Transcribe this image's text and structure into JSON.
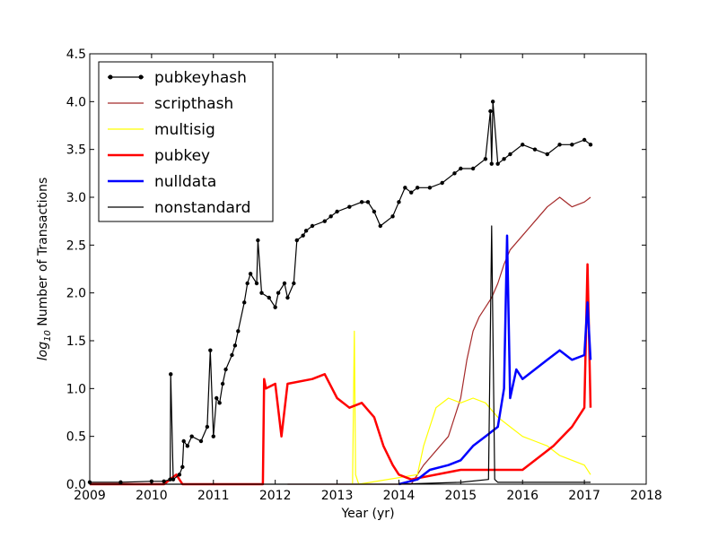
{
  "chart_data": {
    "type": "line",
    "title": "",
    "xlabel": "Year (yr)",
    "ylabel_prefix": "log",
    "ylabel_sub": "10",
    "ylabel_rest": " Number of Transactions",
    "xlim": [
      2009,
      2018
    ],
    "ylim": [
      0,
      4.5
    ],
    "xticks": [
      "2009",
      "2010",
      "2011",
      "2012",
      "2013",
      "2014",
      "2015",
      "2016",
      "2017",
      "2018"
    ],
    "yticks": [
      "0.0",
      "0.5",
      "1.0",
      "1.5",
      "2.0",
      "2.5",
      "3.0",
      "3.5",
      "4.0",
      "4.5"
    ],
    "grid": false,
    "legend_position": "top-left",
    "series": [
      {
        "name": "pubkeyhash",
        "color": "#000000",
        "style": "line-with-dots",
        "x": [
          2009.0,
          2009.5,
          2010.0,
          2010.2,
          2010.3,
          2010.31,
          2010.35,
          2010.45,
          2010.5,
          2010.52,
          2010.58,
          2010.65,
          2010.8,
          2010.9,
          2010.95,
          2011.0,
          2011.05,
          2011.1,
          2011.15,
          2011.2,
          2011.3,
          2011.35,
          2011.4,
          2011.5,
          2011.55,
          2011.6,
          2011.7,
          2011.72,
          2011.78,
          2011.9,
          2012.0,
          2012.05,
          2012.15,
          2012.2,
          2012.3,
          2012.35,
          2012.45,
          2012.5,
          2012.6,
          2012.8,
          2012.9,
          2013.0,
          2013.2,
          2013.4,
          2013.5,
          2013.6,
          2013.7,
          2013.9,
          2014.0,
          2014.1,
          2014.2,
          2014.3,
          2014.5,
          2014.7,
          2014.9,
          2015.0,
          2015.2,
          2015.4,
          2015.48,
          2015.5,
          2015.52,
          2015.6,
          2015.7,
          2015.8,
          2016.0,
          2016.2,
          2016.4,
          2016.6,
          2016.8,
          2017.0,
          2017.1
        ],
        "y": [
          0.02,
          0.02,
          0.03,
          0.03,
          0.05,
          1.15,
          0.05,
          0.1,
          0.18,
          0.45,
          0.4,
          0.5,
          0.45,
          0.6,
          1.4,
          0.5,
          0.9,
          0.85,
          1.05,
          1.2,
          1.35,
          1.45,
          1.6,
          1.9,
          2.1,
          2.2,
          2.1,
          2.55,
          2.0,
          1.95,
          1.85,
          2.0,
          2.1,
          1.95,
          2.1,
          2.55,
          2.6,
          2.65,
          2.7,
          2.75,
          2.8,
          2.85,
          2.9,
          2.95,
          2.95,
          2.85,
          2.7,
          2.8,
          2.95,
          3.1,
          3.05,
          3.1,
          3.1,
          3.15,
          3.25,
          3.3,
          3.3,
          3.4,
          3.9,
          3.35,
          4.0,
          3.35,
          3.4,
          3.45,
          3.55,
          3.5,
          3.45,
          3.55,
          3.55,
          3.6,
          3.55
        ]
      },
      {
        "name": "scripthash",
        "color": "#a52a2a",
        "style": "line",
        "x": [
          2012.2,
          2013.0,
          2014.2,
          2014.4,
          2014.6,
          2014.8,
          2015.0,
          2015.1,
          2015.2,
          2015.3,
          2015.4,
          2015.5,
          2015.6,
          2015.7,
          2015.8,
          2016.0,
          2016.2,
          2016.4,
          2016.6,
          2016.8,
          2017.0,
          2017.1
        ],
        "y": [
          0.0,
          0.0,
          0.0,
          0.2,
          0.35,
          0.5,
          0.9,
          1.3,
          1.6,
          1.75,
          1.85,
          1.95,
          2.1,
          2.3,
          2.45,
          2.6,
          2.75,
          2.9,
          3.0,
          2.9,
          2.95,
          3.0
        ]
      },
      {
        "name": "multisig",
        "color": "#ffff00",
        "style": "line",
        "x": [
          2013.25,
          2013.28,
          2013.3,
          2013.35,
          2014.3,
          2014.4,
          2014.5,
          2014.6,
          2014.8,
          2015.0,
          2015.2,
          2015.4,
          2015.6,
          2015.8,
          2016.0,
          2016.2,
          2016.4,
          2016.6,
          2016.8,
          2017.0,
          2017.1
        ],
        "y": [
          0.0,
          1.6,
          0.1,
          0.0,
          0.1,
          0.4,
          0.6,
          0.8,
          0.9,
          0.85,
          0.9,
          0.85,
          0.7,
          0.6,
          0.5,
          0.45,
          0.4,
          0.3,
          0.25,
          0.2,
          0.1
        ]
      },
      {
        "name": "pubkey",
        "color": "#ff0000",
        "style": "thick-line",
        "x": [
          2009.0,
          2010.2,
          2010.4,
          2010.5,
          2011.8,
          2011.82,
          2011.85,
          2012.0,
          2012.1,
          2012.2,
          2012.6,
          2012.8,
          2013.0,
          2013.2,
          2013.4,
          2013.6,
          2013.75,
          2013.9,
          2014.0,
          2014.2,
          2015.0,
          2016.0,
          2016.5,
          2016.8,
          2017.0,
          2017.05,
          2017.1
        ],
        "y": [
          0.0,
          0.0,
          0.1,
          0.0,
          0.0,
          1.1,
          1.0,
          1.05,
          0.5,
          1.05,
          1.1,
          1.15,
          0.9,
          0.8,
          0.85,
          0.7,
          0.4,
          0.2,
          0.1,
          0.05,
          0.15,
          0.15,
          0.4,
          0.6,
          0.8,
          2.3,
          0.8
        ]
      },
      {
        "name": "nulldata",
        "color": "#0000ff",
        "style": "thick-line",
        "x": [
          2014.0,
          2014.3,
          2014.5,
          2014.8,
          2015.0,
          2015.2,
          2015.4,
          2015.6,
          2015.7,
          2015.75,
          2015.8,
          2015.9,
          2016.0,
          2016.2,
          2016.4,
          2016.6,
          2016.8,
          2017.0,
          2017.05,
          2017.1
        ],
        "y": [
          0.0,
          0.05,
          0.15,
          0.2,
          0.25,
          0.4,
          0.5,
          0.6,
          1.0,
          2.6,
          0.9,
          1.2,
          1.1,
          1.2,
          1.3,
          1.4,
          1.3,
          1.35,
          1.9,
          1.3
        ]
      },
      {
        "name": "nonstandard",
        "color": "#000000",
        "style": "thin-line",
        "x": [
          2009.0,
          2013.0,
          2014.0,
          2015.0,
          2015.45,
          2015.5,
          2015.55,
          2015.6,
          2016.0,
          2017.0,
          2017.1
        ],
        "y": [
          0.0,
          0.0,
          0.0,
          0.02,
          0.05,
          2.7,
          0.05,
          0.02,
          0.02,
          0.02,
          0.02
        ]
      }
    ]
  }
}
